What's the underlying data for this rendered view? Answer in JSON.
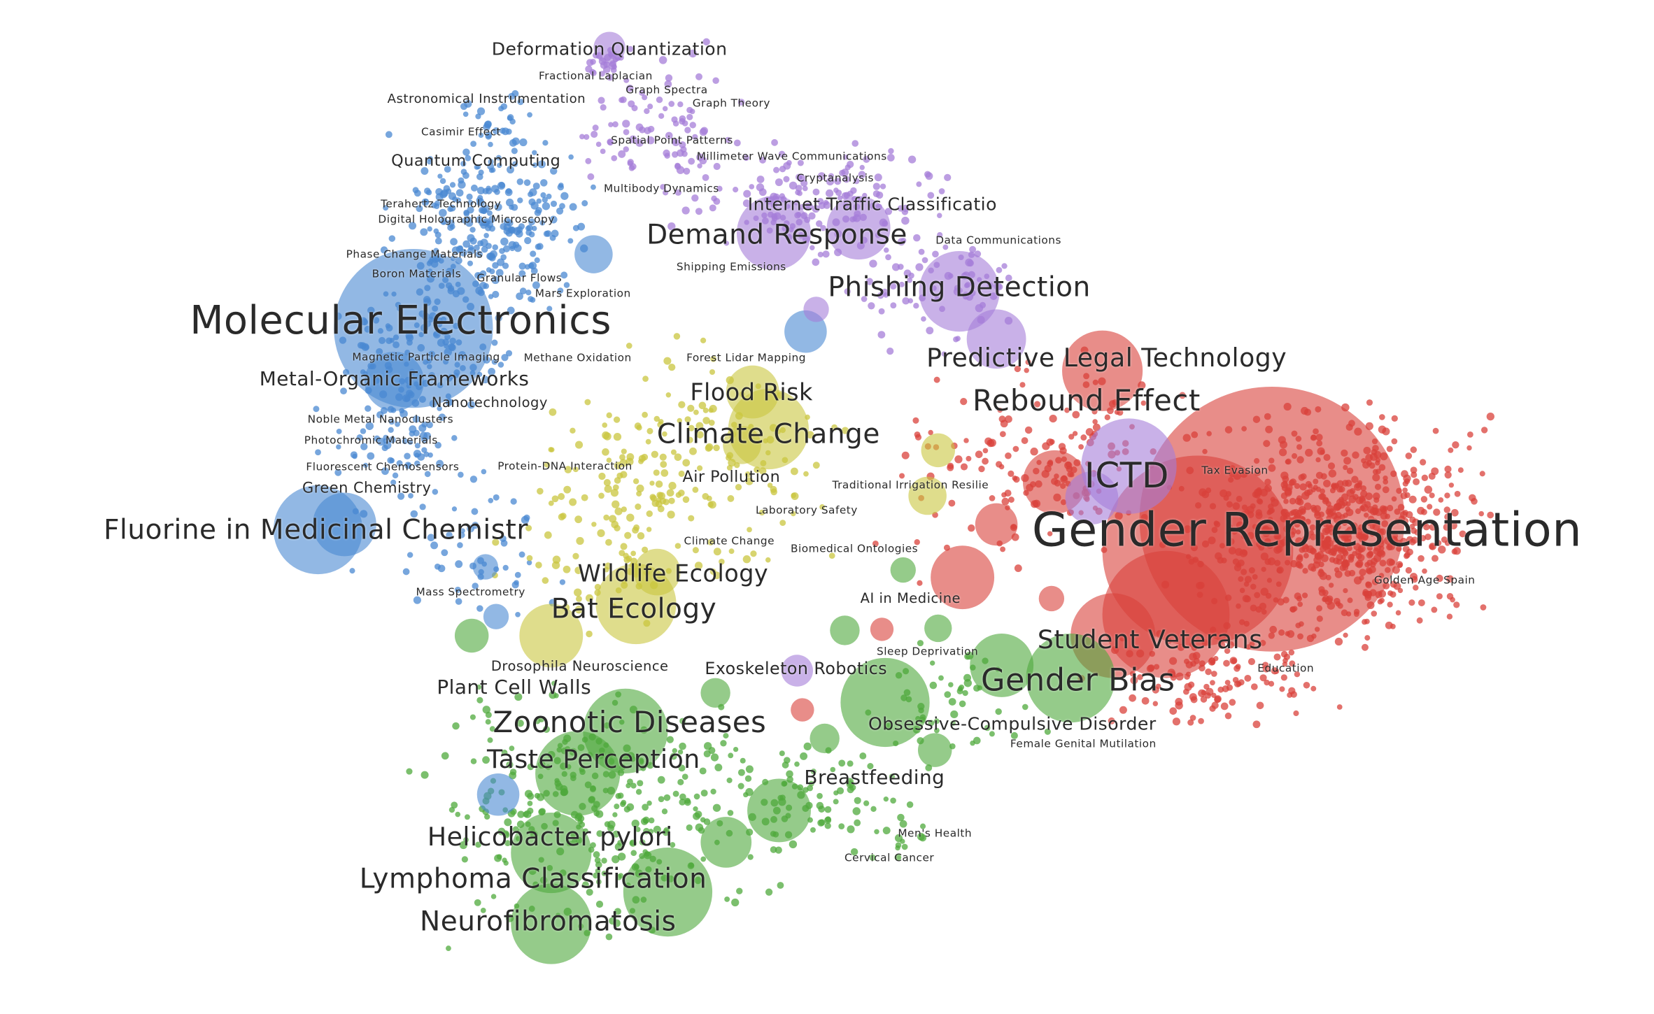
{
  "chart_data": {
    "type": "scatter",
    "title": "",
    "xlabel": "",
    "ylabel": "",
    "axes_visible": false,
    "grid": false,
    "legend": "none",
    "cluster_colors": {
      "physical-sciences": "#4a88d2",
      "computing-math": "#a57dd8",
      "social-sciences": "#d9413b",
      "environment-ecology": "#c9c63f",
      "life-health-sciences": "#4fa93c"
    },
    "labels": [
      "Molecular Electronics",
      "Gender Representation",
      "Fluorine in Medicinal Chemistr",
      "Demand Response",
      "Phishing Detection",
      "Predictive Legal Technology",
      "Rebound Effect",
      "ICTD",
      "Climate Change",
      "Flood Risk",
      "Wildlife Ecology",
      "Bat Ecology",
      "Student Veterans",
      "Gender Bias",
      "Zoonotic Diseases",
      "Taste Perception",
      "Helicobacter pylori",
      "Lymphoma Classification",
      "Neurofibromatosis",
      "Deformation Quantization",
      "Quantum Computing",
      "Internet Traffic Classificatio",
      "Metal-Organic Frameworks",
      "Green Chemistry",
      "Plant Cell Walls",
      "Exoskeleton Robotics",
      "Obsessive-Compulsive Disorder",
      "Breastfeeding",
      "Air Pollution",
      "Nanotechnology",
      "Astronomical Instrumentation",
      "AI in Medicine",
      "Drosophila Neuroscience",
      "Fractional Laplacian",
      "Graph Spectra",
      "Graph Theory",
      "Casimir Effect",
      "Spatial Point Patterns",
      "Millimeter Wave Communications",
      "Cryptanalysis",
      "Multibody Dynamics",
      "Terahertz Technology",
      "Digital Holographic Microscopy",
      "Data Communications",
      "Phase Change Materials",
      "Shipping Emissions",
      "Boron Materials",
      "Granular Flows",
      "Mars Exploration",
      "Magnetic Particle Imaging",
      "Methane Oxidation",
      "Forest Lidar Mapping",
      "Noble Metal Nanoclusters",
      "Photochromic Materials",
      "Fluorescent Chemosensors",
      "Protein-DNA Interaction",
      "Tax Evasion",
      "Traditional Irrigation Resilie",
      "Laboratory Safety",
      "Climate Change",
      "Biomedical Ontologies",
      "Golden Age Spain",
      "Mass Spectrometry",
      "Sleep Deprivation",
      "Education",
      "Female Genital Mutilation",
      "Men's Health",
      "Cervical Cancer"
    ]
  }
}
